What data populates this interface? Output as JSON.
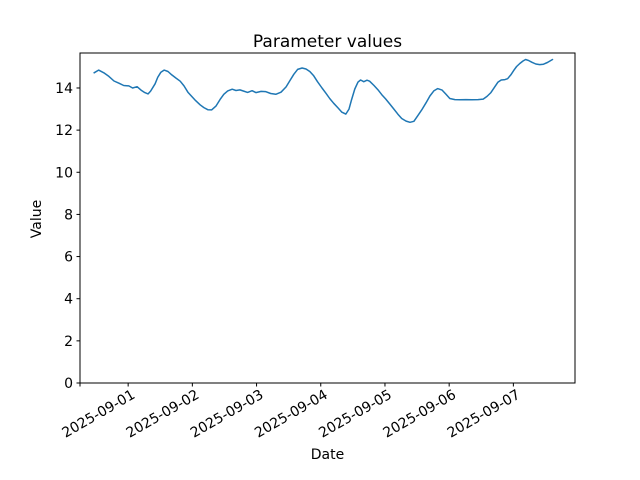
{
  "figure": {
    "background": "#ffffff"
  },
  "chart_data": {
    "type": "line",
    "title": "Parameter values",
    "xlabel": "Date",
    "ylabel": "Value",
    "line_color": "#1f77b4",
    "line_width": 1.5,
    "grid": false,
    "legend": null,
    "xlim_days": [
      -0.75,
      6.96
    ],
    "ylim": [
      0,
      15.66
    ],
    "x_axis": {
      "tick_days": [
        0,
        1,
        2,
        3,
        4,
        5,
        6
      ],
      "tick_labels": [
        "2025-09-01",
        "2025-09-02",
        "2025-09-03",
        "2025-09-04",
        "2025-09-05",
        "2025-09-06",
        "2025-09-07"
      ],
      "extra_unlabeled_tick_day": -0.75,
      "label_rotation_deg": 30
    },
    "y_axis": {
      "ticks": [
        0,
        2,
        4,
        6,
        8,
        10,
        12,
        14
      ]
    },
    "series": [
      {
        "name": "parameter",
        "x_days": [
          -0.53,
          -0.46,
          -0.38,
          -0.3,
          -0.22,
          -0.14,
          -0.07,
          0.01,
          0.07,
          0.14,
          0.2,
          0.26,
          0.31,
          0.35,
          0.42,
          0.46,
          0.51,
          0.56,
          0.62,
          0.68,
          0.74,
          0.81,
          0.87,
          0.93,
          0.99,
          1.05,
          1.12,
          1.18,
          1.24,
          1.3,
          1.37,
          1.43,
          1.49,
          1.55,
          1.62,
          1.68,
          1.74,
          1.8,
          1.86,
          1.93,
          1.99,
          2.07,
          2.14,
          2.22,
          2.3,
          2.38,
          2.46,
          2.52,
          2.58,
          2.64,
          2.71,
          2.77,
          2.83,
          2.89,
          2.95,
          3.02,
          3.08,
          3.14,
          3.2,
          3.27,
          3.33,
          3.39,
          3.44,
          3.48,
          3.53,
          3.58,
          3.62,
          3.67,
          3.72,
          3.76,
          3.83,
          3.89,
          3.95,
          4.01,
          4.08,
          4.14,
          4.2,
          4.26,
          4.33,
          4.39,
          4.45,
          4.51,
          4.57,
          4.64,
          4.7,
          4.76,
          4.82,
          4.89,
          4.95,
          5.01,
          5.09,
          5.17,
          5.26,
          5.35,
          5.45,
          5.53,
          5.59,
          5.65,
          5.71,
          5.76,
          5.81,
          5.87,
          5.91,
          5.96,
          6.01,
          6.05,
          6.1,
          6.15,
          6.19,
          6.24,
          6.29,
          6.35,
          6.41,
          6.47,
          6.53,
          6.58,
          6.61
        ],
        "values": [
          14.72,
          14.85,
          14.72,
          14.55,
          14.33,
          14.22,
          14.12,
          14.1,
          14.0,
          14.06,
          13.9,
          13.78,
          13.72,
          13.85,
          14.2,
          14.5,
          14.75,
          14.85,
          14.78,
          14.62,
          14.48,
          14.32,
          14.1,
          13.8,
          13.6,
          13.4,
          13.2,
          13.07,
          12.97,
          12.96,
          13.15,
          13.45,
          13.7,
          13.86,
          13.94,
          13.88,
          13.91,
          13.85,
          13.79,
          13.87,
          13.78,
          13.84,
          13.83,
          13.74,
          13.7,
          13.8,
          14.05,
          14.35,
          14.65,
          14.88,
          14.95,
          14.9,
          14.78,
          14.58,
          14.3,
          14.0,
          13.75,
          13.5,
          13.28,
          13.05,
          12.85,
          12.76,
          13.0,
          13.45,
          13.95,
          14.28,
          14.38,
          14.3,
          14.37,
          14.32,
          14.12,
          13.92,
          13.68,
          13.48,
          13.22,
          13.0,
          12.76,
          12.55,
          12.43,
          12.37,
          12.42,
          12.68,
          12.95,
          13.3,
          13.62,
          13.86,
          13.97,
          13.9,
          13.7,
          13.5,
          13.45,
          13.44,
          13.45,
          13.44,
          13.45,
          13.47,
          13.6,
          13.78,
          14.05,
          14.28,
          14.38,
          14.4,
          14.44,
          14.62,
          14.85,
          15.02,
          15.16,
          15.28,
          15.35,
          15.3,
          15.22,
          15.14,
          15.11,
          15.13,
          15.21,
          15.3,
          15.35
        ]
      }
    ]
  }
}
